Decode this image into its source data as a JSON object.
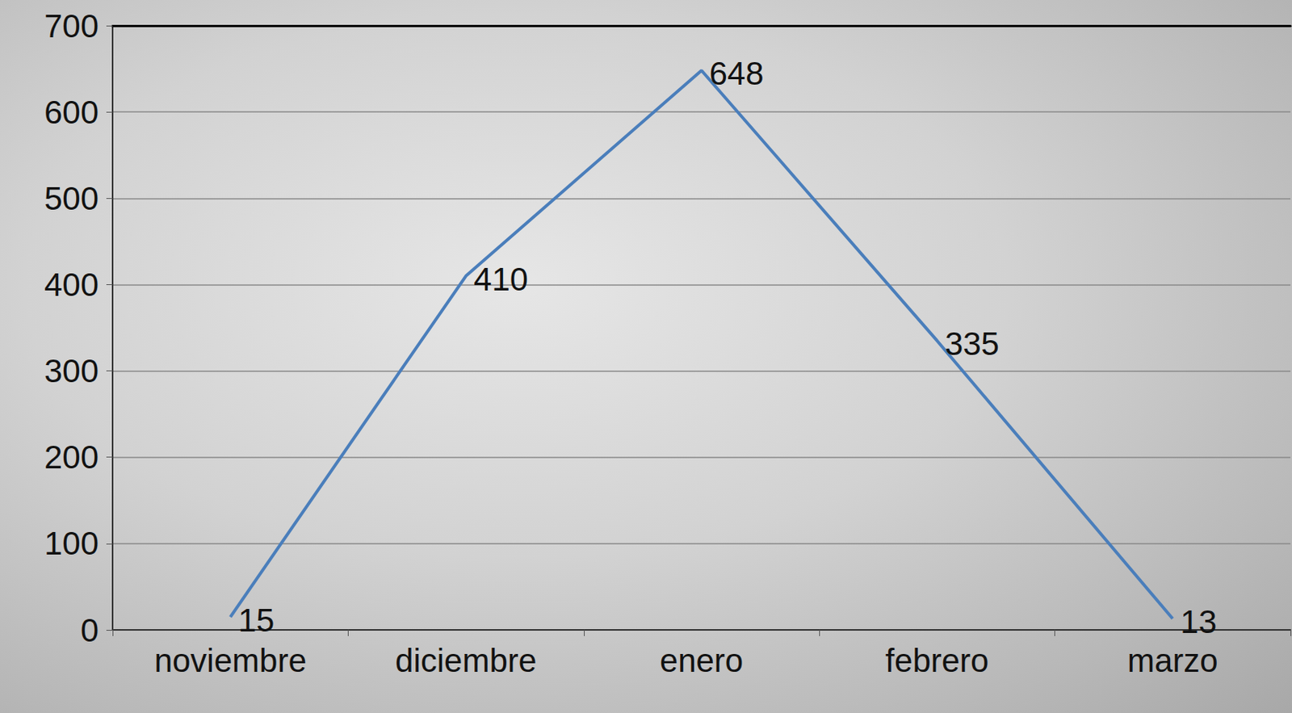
{
  "chart_data": {
    "type": "line",
    "categories": [
      "noviembre",
      "diciembre",
      "enero",
      "febrero",
      "marzo"
    ],
    "values": [
      15,
      410,
      648,
      335,
      13
    ],
    "color": "#4a7ebb",
    "ylim": [
      0,
      700
    ],
    "yticks": [
      0,
      100,
      200,
      300,
      400,
      500,
      600,
      700
    ],
    "grid": true,
    "data_labels": true,
    "marker": "none"
  }
}
